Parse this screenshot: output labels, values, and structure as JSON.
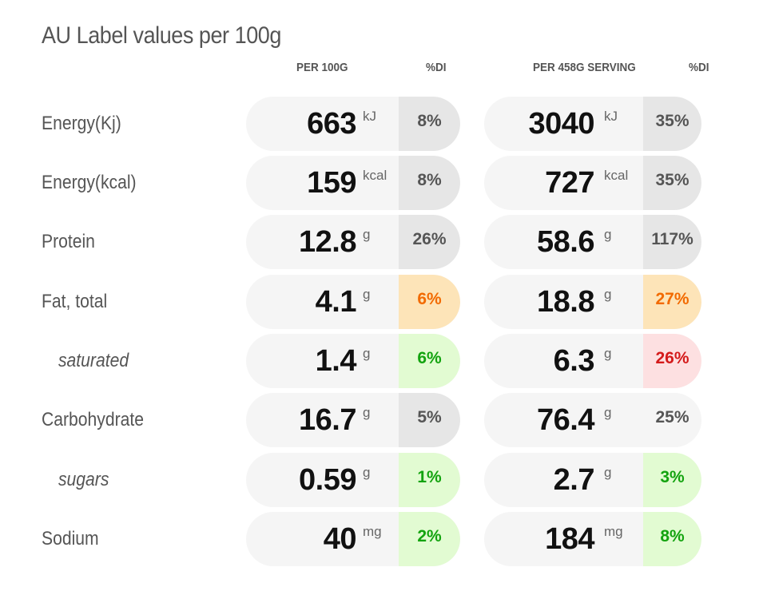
{
  "title": "AU Label values per 100g",
  "headers": {
    "per100": "PER 100G",
    "di1": "%DI",
    "perServing": "PER 458G SERVING",
    "di2": "%DI"
  },
  "rows": [
    {
      "label": "Energy(Kj)",
      "v1": "663",
      "u1": "kJ",
      "d1": "8%",
      "c1": "gray",
      "v2": "3040",
      "u2": "kJ",
      "d2": "35%",
      "c2": "gray"
    },
    {
      "label": "Energy(kcal)",
      "v1": "159",
      "u1": "kcal",
      "d1": "8%",
      "c1": "gray",
      "v2": "727",
      "u2": "kcal",
      "d2": "35%",
      "c2": "gray"
    },
    {
      "label": "Protein",
      "v1": "12.8",
      "u1": "g",
      "d1": "26%",
      "c1": "gray",
      "v2": "58.6",
      "u2": "g",
      "d2": "117%",
      "c2": "gray"
    },
    {
      "label": "Fat, total",
      "v1": "4.1",
      "u1": "g",
      "d1": "6%",
      "c1": "orange",
      "v2": "18.8",
      "u2": "g",
      "d2": "27%",
      "c2": "orange"
    },
    {
      "label": "saturated",
      "v1": "1.4",
      "u1": "g",
      "d1": "6%",
      "c1": "green",
      "v2": "6.3",
      "u2": "g",
      "d2": "26%",
      "c2": "red"
    },
    {
      "label": "Carbohydrate",
      "v1": "16.7",
      "u1": "g",
      "d1": "5%",
      "c1": "gray",
      "v2": "76.4",
      "u2": "g",
      "d2": "25%",
      "c2": "none"
    },
    {
      "label": "sugars",
      "v1": "0.59",
      "u1": "g",
      "d1": "1%",
      "c1": "green",
      "v2": "2.7",
      "u2": "g",
      "d2": "3%",
      "c2": "green"
    },
    {
      "label": "Sodium",
      "v1": "40",
      "u1": "mg",
      "d1": "2%",
      "c1": "green",
      "v2": "184",
      "u2": "mg",
      "d2": "8%",
      "c2": "green"
    }
  ],
  "colors": {
    "gray": "#e6e6e6",
    "orange": "#fde4b8",
    "green": "#e2fbd2",
    "red": "#fde0e1"
  }
}
